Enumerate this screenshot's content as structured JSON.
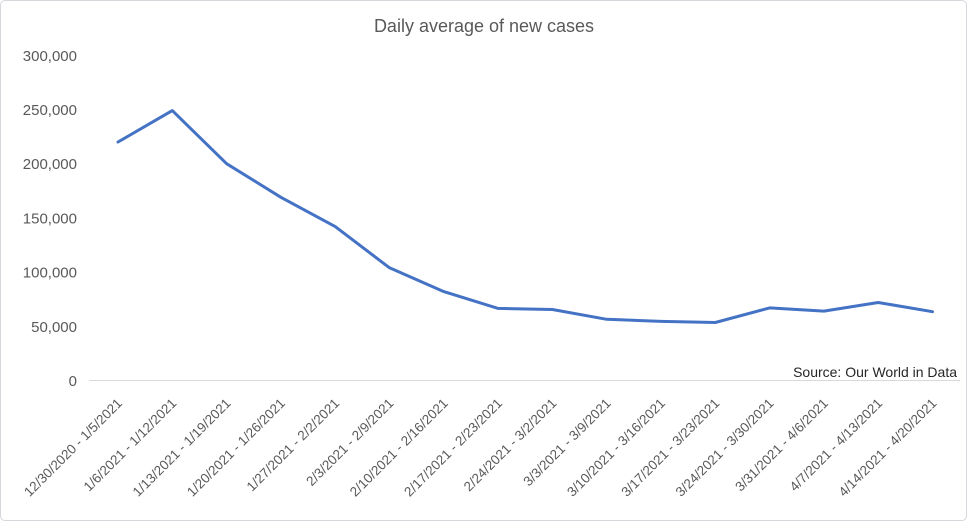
{
  "chart": {
    "title": "Daily average of new cases",
    "source_note": "Source: Our World in Data"
  },
  "chart_data": {
    "type": "line",
    "title": "Daily average of new cases",
    "categories": [
      "12/30/2020 - 1/5/2021",
      "1/6/2021 - 1/12/2021",
      "1/13/2021 - 1/19/2021",
      "1/20/2021 - 1/26/2021",
      "1/27/2021 - 2/2/2021",
      "2/3/2021 - 2/9/2021",
      "2/10/2021 - 2/16/2021",
      "2/17/2021 - 2/23/2021",
      "2/24/2021 - 3/2/2021",
      "3/3/2021 - 3/9/2021",
      "3/10/2021 - 3/16/2021",
      "3/17/2021 - 3/23/2021",
      "3/24/2021 - 3/30/2021",
      "3/31/2021 - 4/6/2021",
      "4/7/2021 - 4/13/2021",
      "4/14/2021 - 4/20/2021"
    ],
    "values": [
      220000,
      249000,
      200000,
      169000,
      142000,
      104000,
      82000,
      66500,
      65500,
      56500,
      54500,
      53500,
      67000,
      64000,
      72000,
      63500
    ],
    "xlabel": "",
    "ylabel": "",
    "ylim": [
      0,
      300000
    ],
    "ytick_step": 50000,
    "ytick_labels": [
      "0",
      "50,000",
      "100,000",
      "150,000",
      "200,000",
      "250,000",
      "300,000"
    ],
    "grid": false,
    "legend": false,
    "annotation": "Source: Our World in Data",
    "line_color": "#4472C4",
    "axis_color": "#D9D9D9",
    "text_color": "#595959",
    "annotation_color": "#262626"
  }
}
